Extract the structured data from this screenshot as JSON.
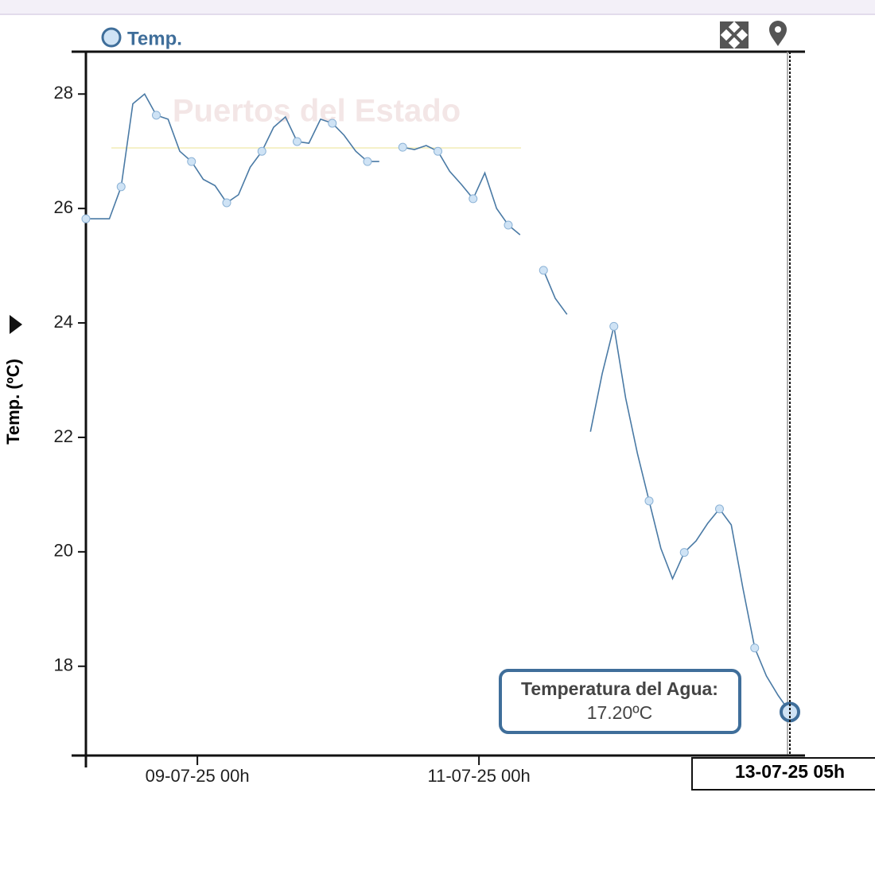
{
  "chart_data": {
    "type": "line",
    "legend": "Temp.",
    "watermark": "Puertos del Estado",
    "y_label": "Temp. (ºC)",
    "x": [
      "08-07-25 05h",
      "08-07-25 07h",
      "08-07-25 09h",
      "08-07-25 11h",
      "08-07-25 13h",
      "08-07-25 15h",
      "08-07-25 17h",
      "08-07-25 19h",
      "08-07-25 21h",
      "08-07-25 23h",
      "09-07-25 01h",
      "09-07-25 03h",
      "09-07-25 05h",
      "09-07-25 07h",
      "09-07-25 09h",
      "09-07-25 11h",
      "09-07-25 13h",
      "09-07-25 15h",
      "09-07-25 17h",
      "09-07-25 19h",
      "09-07-25 21h",
      "09-07-25 23h",
      "10-07-25 01h",
      "10-07-25 03h",
      "10-07-25 05h",
      "10-07-25 07h",
      "10-07-25 09h",
      "10-07-25 11h",
      "10-07-25 13h",
      "10-07-25 15h",
      "10-07-25 17h",
      "10-07-25 19h",
      "10-07-25 21h",
      "10-07-25 23h",
      "11-07-25 01h",
      "11-07-25 03h",
      "11-07-25 05h",
      "11-07-25 07h",
      "11-07-25 09h",
      "11-07-25 11h",
      "11-07-25 13h",
      "11-07-25 15h",
      "11-07-25 17h",
      "11-07-25 19h",
      "11-07-25 21h",
      "11-07-25 23h",
      "12-07-25 01h",
      "12-07-25 03h",
      "12-07-25 05h",
      "12-07-25 07h",
      "12-07-25 09h",
      "12-07-25 11h",
      "12-07-25 13h",
      "12-07-25 15h",
      "12-07-25 17h",
      "12-07-25 19h",
      "12-07-25 21h",
      "12-07-25 23h",
      "13-07-25 01h",
      "13-07-25 03h",
      "13-07-25 05h"
    ],
    "series": [
      {
        "name": "Temp.",
        "color": "#4a7aa5",
        "values": [
          25.82,
          25.82,
          25.82,
          26.38,
          27.83,
          28.0,
          27.63,
          27.56,
          27.0,
          26.82,
          26.51,
          26.4,
          26.1,
          26.24,
          26.72,
          27.0,
          27.42,
          27.6,
          27.17,
          27.14,
          27.56,
          27.49,
          27.28,
          27.0,
          26.82,
          26.82,
          null,
          27.07,
          27.03,
          27.1,
          27.0,
          26.65,
          26.42,
          26.17,
          26.62,
          26.0,
          25.71,
          25.54,
          null,
          24.92,
          24.43,
          24.15,
          null,
          22.1,
          23.11,
          23.94,
          22.69,
          21.72,
          20.89,
          20.06,
          19.53,
          19.99,
          20.19,
          20.5,
          20.75,
          20.47,
          19.36,
          18.32,
          17.83,
          17.49,
          17.2
        ]
      }
    ],
    "xlim": [
      "08-07-25 05h",
      "13-07-25 05h"
    ],
    "xticks": [
      "09-07-25 00h",
      "11-07-25 00h"
    ],
    "ylim": [
      16.44,
      28.74
    ],
    "yticks": [
      18,
      20,
      22,
      24,
      26,
      28
    ],
    "tooltip": {
      "label": "Temperatura del Agua:",
      "text": "17.20ºC"
    }
  }
}
